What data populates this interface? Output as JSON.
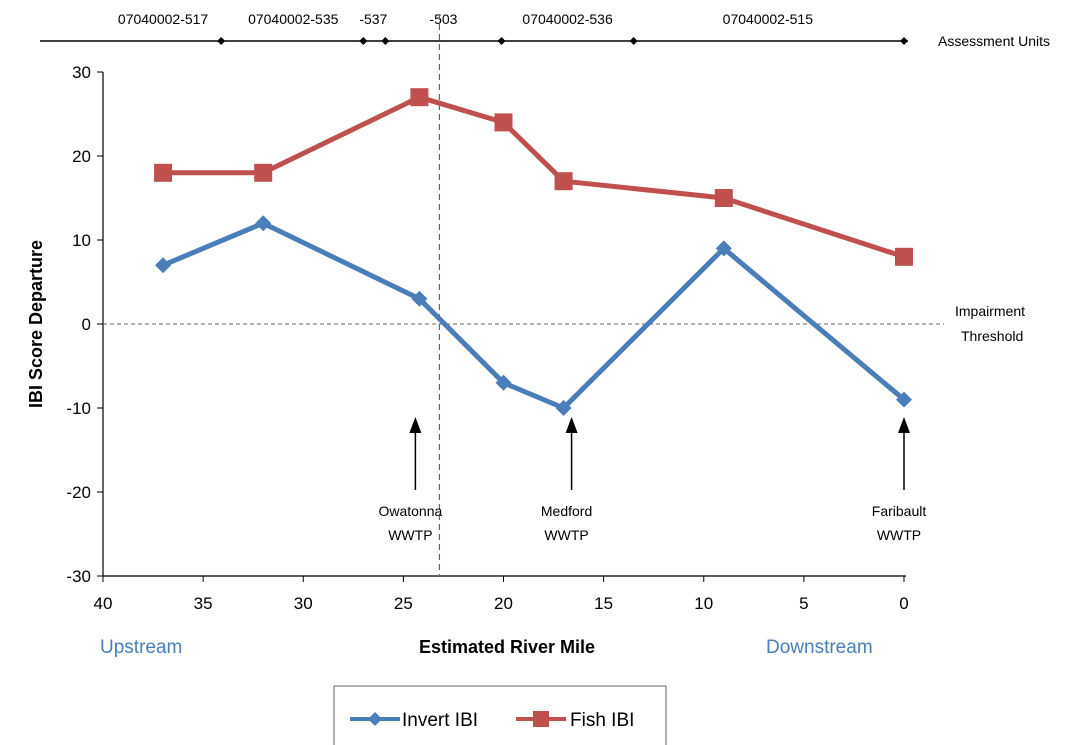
{
  "chart_data": {
    "type": "line",
    "title": "",
    "xlabel": "Estimated River Mile",
    "ylabel": "IBI Score Departure",
    "xlim": [
      40,
      0
    ],
    "ylim": [
      -30,
      30
    ],
    "x_reversed": true,
    "x_ticks": [
      "40",
      "35",
      "30",
      "25",
      "20",
      "15",
      "10",
      "5",
      "0"
    ],
    "y_ticks": [
      "30",
      "20",
      "10",
      "0",
      "-10",
      "-20",
      "-30"
    ],
    "grid": false,
    "legend_position": "bottom",
    "series": [
      {
        "name": "Invert IBI",
        "color": "#4a7eb8",
        "marker": "diamond",
        "x": [
          37,
          32,
          24.2,
          20,
          17,
          9,
          0
        ],
        "y": [
          7,
          12,
          3,
          -7,
          -10,
          9,
          -9
        ]
      },
      {
        "name": "Fish IBI",
        "color": "#c0504d",
        "marker": "square",
        "x": [
          37,
          32,
          24.2,
          20,
          17,
          9,
          0
        ],
        "y": [
          18,
          18,
          27,
          24,
          17,
          15,
          8
        ]
      }
    ],
    "threshold": {
      "y": 0,
      "label_line1": "Impairment",
      "label_line2": "Threshold"
    },
    "divider_x": 23.2,
    "direction_labels": {
      "upstream": "Upstream",
      "downstream": "Downstream"
    },
    "assessment_units": {
      "title": "Assessment Units",
      "boundaries": [
        34.1,
        27,
        25.9,
        20.1,
        13.5,
        0
      ],
      "segments": [
        {
          "label": "07040002-517",
          "x": 37
        },
        {
          "label": "07040002-535",
          "x": 30.5
        },
        {
          "label": "-537",
          "x": 26.5
        },
        {
          "label": "-503",
          "x": 23
        },
        {
          "label": "07040002-536",
          "x": 16.8
        },
        {
          "label": "07040002-515",
          "x": 6.8
        }
      ]
    },
    "annotations": [
      {
        "line1": "Owatonna",
        "line2": "WWTP",
        "x": 24.4
      },
      {
        "line1": "Medford",
        "line2": "WWTP",
        "x": 16.6
      },
      {
        "line1": "Faribault",
        "line2": "WWTP",
        "x": 0
      }
    ]
  }
}
